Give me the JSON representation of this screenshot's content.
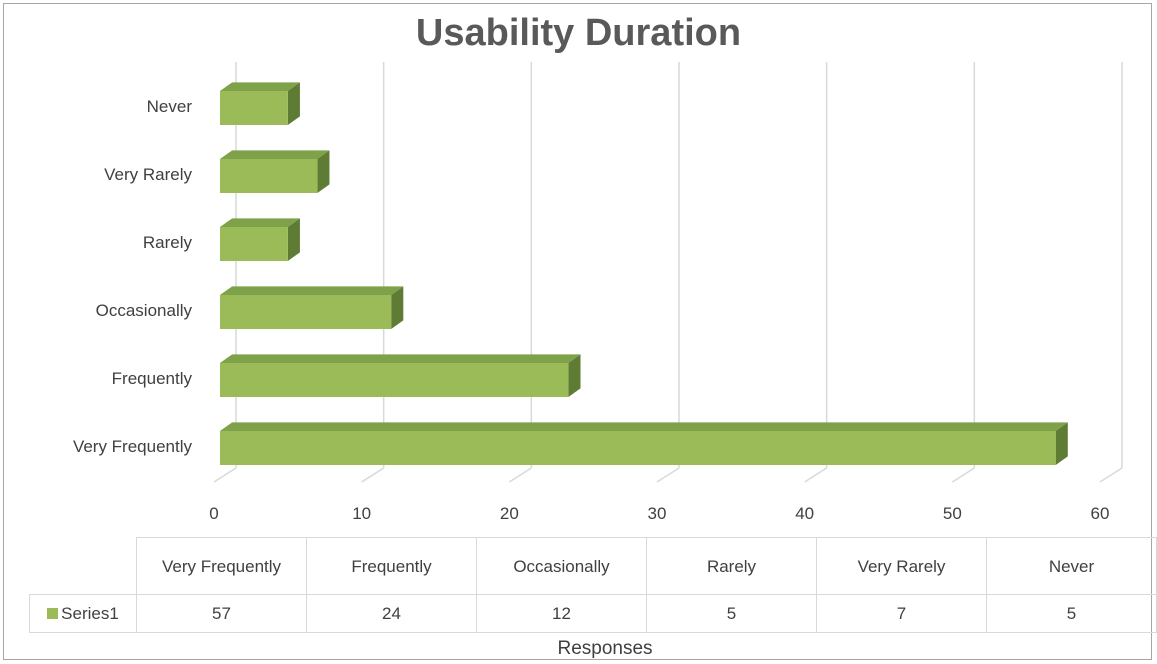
{
  "chart_data": {
    "type": "bar",
    "orientation": "horizontal",
    "title": "Usability Duration",
    "categories": [
      "Very Frequently",
      "Frequently",
      "Occasionally",
      "Rarely",
      "Very Rarely",
      "Never"
    ],
    "series": [
      {
        "name": "Series1",
        "values": [
          57,
          24,
          12,
          5,
          7,
          5
        ],
        "color": "#9bbb59"
      }
    ],
    "xlabel": "Responses",
    "ylabel": "",
    "xlim": [
      0,
      60
    ],
    "xticks": [
      "0",
      "10",
      "20",
      "30",
      "40",
      "50",
      "60"
    ],
    "grid": true,
    "legend": "data-table",
    "colors": {
      "bar_face": "#9bbb59",
      "bar_top": "#7ea24a",
      "bar_side": "#5f7c35",
      "grid": "#d9d9d9",
      "text": "#404040",
      "title": "#595959"
    }
  }
}
